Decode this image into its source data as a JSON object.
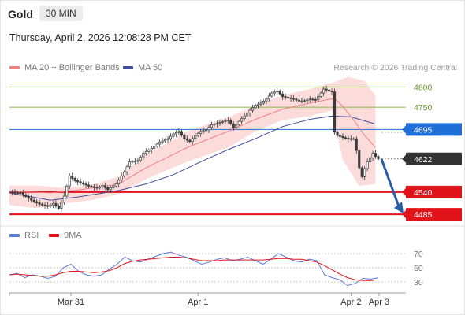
{
  "header": {
    "instrument": "Gold",
    "timeframe": "30 MIN",
    "timestamp": "Thursday, April 2, 2026 12:08:28 PM CET"
  },
  "legend": {
    "ma20_label": "MA 20 + Bollinger Bands",
    "ma50_label": "MA 50",
    "credit": "Research © 2026 Trading Central",
    "rsi_label": "RSI",
    "rsi_ma_label": "9MA"
  },
  "colors": {
    "ma20": "#f08080",
    "bands_fill": "#fbd5d5",
    "ma50": "#3f4d9c",
    "candle": "#3a3a3a",
    "support": "#e0121a",
    "pivot": "#1f6fd6",
    "resistance": "#86b847",
    "current": "#333333",
    "rsi": "#5b7bd8",
    "rsi_ma": "#e0121a",
    "arrow": "#2a5ba6"
  },
  "chart_data": [
    {
      "type": "candlestick",
      "title": "Gold",
      "timeframe": "30 MIN",
      "x_labels": [
        "Mar 31",
        "Apr 1",
        "Apr 2",
        "Apr 3"
      ],
      "ylim": [
        4460,
        4830
      ],
      "levels": [
        {
          "value": 4800,
          "label": "4800",
          "kind": "resistance"
        },
        {
          "value": 4750,
          "label": "4750",
          "kind": "resistance"
        },
        {
          "value": 4695,
          "label": "4695",
          "kind": "pivot"
        },
        {
          "value": 4622,
          "label": "4622",
          "kind": "current"
        },
        {
          "value": 4540,
          "label": "4540",
          "kind": "support"
        },
        {
          "value": 4485,
          "label": "4485",
          "kind": "support"
        }
      ],
      "close_path": [
        [
          0,
          4540
        ],
        [
          8,
          4538
        ],
        [
          16,
          4520
        ],
        [
          22,
          4510
        ],
        [
          28,
          4505
        ],
        [
          32,
          4512
        ],
        [
          36,
          4500
        ],
        [
          40,
          4530
        ],
        [
          44,
          4580
        ],
        [
          48,
          4568
        ],
        [
          54,
          4560
        ],
        [
          58,
          4555
        ],
        [
          64,
          4550
        ],
        [
          68,
          4556
        ],
        [
          72,
          4546
        ],
        [
          78,
          4560
        ],
        [
          84,
          4590
        ],
        [
          88,
          4615
        ],
        [
          94,
          4618
        ],
        [
          98,
          4636
        ],
        [
          104,
          4648
        ],
        [
          110,
          4664
        ],
        [
          116,
          4672
        ],
        [
          120,
          4684
        ],
        [
          124,
          4690
        ],
        [
          128,
          4672
        ],
        [
          132,
          4665
        ],
        [
          136,
          4680
        ],
        [
          140,
          4690
        ],
        [
          144,
          4694
        ],
        [
          148,
          4706
        ],
        [
          152,
          4710
        ],
        [
          156,
          4714
        ],
        [
          160,
          4718
        ],
        [
          164,
          4700
        ],
        [
          170,
          4722
        ],
        [
          176,
          4742
        ],
        [
          180,
          4755
        ],
        [
          184,
          4760
        ],
        [
          188,
          4770
        ],
        [
          192,
          4785
        ],
        [
          196,
          4790
        ],
        [
          200,
          4776
        ],
        [
          204,
          4773
        ],
        [
          208,
          4770
        ],
        [
          212,
          4765
        ],
        [
          216,
          4766
        ],
        [
          220,
          4770
        ],
        [
          224,
          4768
        ],
        [
          228,
          4785
        ],
        [
          230,
          4795
        ],
        [
          234,
          4790
        ],
        [
          236,
          4788
        ],
        [
          238,
          4688
        ],
        [
          240,
          4680
        ],
        [
          244,
          4675
        ],
        [
          248,
          4672
        ],
        [
          252,
          4672
        ],
        [
          254,
          4643
        ],
        [
          256,
          4600
        ],
        [
          258,
          4578
        ],
        [
          260,
          4598
        ],
        [
          262,
          4615
        ],
        [
          264,
          4625
        ],
        [
          266,
          4636
        ],
        [
          268,
          4628
        ],
        [
          270,
          4622
        ]
      ],
      "ma20_path": [
        [
          0,
          4542
        ],
        [
          30,
          4538
        ],
        [
          50,
          4545
        ],
        [
          80,
          4560
        ],
        [
          100,
          4600
        ],
        [
          130,
          4650
        ],
        [
          160,
          4690
        ],
        [
          180,
          4720
        ],
        [
          200,
          4745
        ],
        [
          220,
          4760
        ],
        [
          238,
          4772
        ],
        [
          244,
          4752
        ],
        [
          252,
          4718
        ],
        [
          260,
          4680
        ],
        [
          268,
          4650
        ]
      ],
      "ma50_path": [
        [
          0,
          4538
        ],
        [
          30,
          4520
        ],
        [
          50,
          4528
        ],
        [
          80,
          4544
        ],
        [
          100,
          4560
        ],
        [
          120,
          4583
        ],
        [
          140,
          4615
        ],
        [
          160,
          4645
        ],
        [
          180,
          4672
        ],
        [
          200,
          4702
        ],
        [
          220,
          4720
        ],
        [
          236,
          4728
        ],
        [
          250,
          4726
        ],
        [
          268,
          4708
        ]
      ],
      "bb_upper_path": [
        [
          0,
          4556
        ],
        [
          20,
          4556
        ],
        [
          40,
          4550
        ],
        [
          60,
          4558
        ],
        [
          80,
          4578
        ],
        [
          100,
          4632
        ],
        [
          130,
          4690
        ],
        [
          160,
          4725
        ],
        [
          180,
          4753
        ],
        [
          200,
          4780
        ],
        [
          220,
          4795
        ],
        [
          236,
          4810
        ],
        [
          248,
          4825
        ],
        [
          260,
          4815
        ],
        [
          268,
          4778
        ]
      ],
      "bb_lower_path": [
        [
          0,
          4508
        ],
        [
          20,
          4500
        ],
        [
          40,
          4512
        ],
        [
          60,
          4520
        ],
        [
          80,
          4535
        ],
        [
          100,
          4572
        ],
        [
          130,
          4615
        ],
        [
          160,
          4650
        ],
        [
          180,
          4690
        ],
        [
          200,
          4718
        ],
        [
          220,
          4728
        ],
        [
          236,
          4742
        ],
        [
          244,
          4620
        ],
        [
          256,
          4555
        ],
        [
          268,
          4560
        ]
      ],
      "forecast": {
        "from": 4622,
        "to": 4485
      }
    },
    {
      "type": "line",
      "title": "RSI",
      "ylim": [
        20,
        80
      ],
      "y_ticks": [
        "70",
        "50",
        "30"
      ],
      "series": [
        {
          "name": "RSI",
          "values": [
            40,
            42,
            36,
            40,
            38,
            35,
            38,
            50,
            55,
            45,
            40,
            38,
            40,
            48,
            55,
            65,
            60,
            58,
            62,
            66,
            70,
            72,
            68,
            65,
            60,
            55,
            58,
            62,
            64,
            60,
            62,
            65,
            60,
            55,
            62,
            70,
            65,
            60,
            58,
            62,
            60,
            40,
            36,
            33,
            25,
            28,
            35,
            34,
            36
          ]
        },
        {
          "name": "9MA",
          "values": [
            40,
            41,
            40,
            39,
            38,
            38,
            40,
            43,
            45,
            45,
            44,
            43,
            44,
            46,
            50,
            56,
            59,
            61,
            62,
            63,
            64,
            65,
            65,
            64,
            62,
            60,
            60,
            60,
            61,
            61,
            61,
            61,
            61,
            61,
            62,
            63,
            63,
            62,
            62,
            60,
            58,
            53,
            47,
            41,
            36,
            33,
            32,
            32,
            33
          ]
        }
      ]
    }
  ]
}
